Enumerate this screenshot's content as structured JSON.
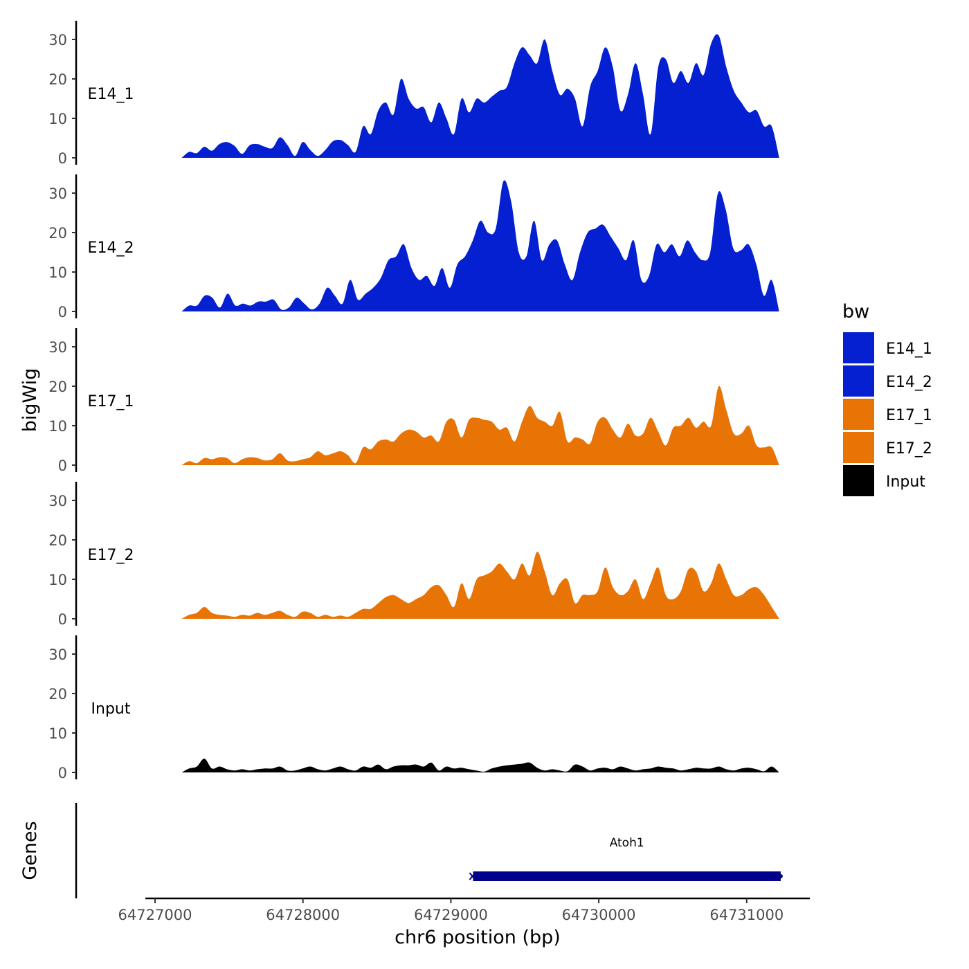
{
  "chart_data": {
    "type": "area",
    "title": "",
    "ylabel": "bigWig",
    "xlabel": "chr6 position (bp)",
    "genes_label": "Genes",
    "legend": {
      "title": "bw",
      "position": "right",
      "entries": [
        {
          "label": "E14_1",
          "color": "#0420D0"
        },
        {
          "label": "E14_2",
          "color": "#0420D0"
        },
        {
          "label": "E17_1",
          "color": "#E87406"
        },
        {
          "label": "E17_2",
          "color": "#E87406"
        },
        {
          "label": "Input",
          "color": "#000000"
        }
      ]
    },
    "ylim": [
      0,
      35
    ],
    "y_ticks": [
      "0",
      "10",
      "20",
      "30"
    ],
    "xlim": [
      64726950,
      64731450
    ],
    "x_ticks": [
      {
        "value": 64727000,
        "label": "64727000"
      },
      {
        "value": 64728000,
        "label": "64728000"
      },
      {
        "value": 64729000,
        "label": "64729000"
      },
      {
        "value": 64730000,
        "label": "64730000"
      },
      {
        "value": 64731000,
        "label": "64731000"
      }
    ],
    "x_range": [
      64727180,
      64731220
    ],
    "series": [
      {
        "name": "E14_1",
        "color": "#0420D0",
        "values": [
          0,
          1.5,
          1.2,
          2.8,
          1.8,
          3.5,
          4,
          3,
          1,
          3.2,
          3.5,
          2.8,
          2.5,
          5.2,
          3.2,
          0.5,
          4,
          2,
          0.5,
          2,
          4.2,
          4.5,
          3.2,
          1.5,
          8,
          6,
          12,
          14,
          11,
          20,
          15,
          12.5,
          12.8,
          9,
          14,
          10,
          6,
          15,
          11.5,
          15,
          14,
          15.5,
          17,
          18,
          24,
          28,
          26,
          24,
          30,
          22,
          16,
          17.5,
          15,
          8,
          18,
          22,
          28,
          23,
          12,
          16,
          24,
          16,
          6,
          23,
          25,
          19,
          22,
          19,
          24,
          21,
          29,
          31,
          23,
          17,
          14,
          11.5,
          12,
          8,
          8,
          0
        ]
      },
      {
        "name": "E14_2",
        "color": "#0420D0",
        "values": [
          0,
          1.5,
          1.5,
          4,
          3.5,
          1,
          4.5,
          1.5,
          2,
          1.5,
          2.5,
          2.5,
          3,
          0.5,
          1,
          3.5,
          2,
          0.5,
          2,
          6,
          4,
          2,
          8,
          3,
          4.5,
          6,
          8.5,
          13,
          14,
          17,
          11,
          8,
          9,
          6.5,
          11,
          6,
          12,
          14,
          18,
          23,
          20,
          21,
          33,
          28,
          15,
          14,
          23,
          13,
          17,
          18,
          12,
          8,
          15,
          20,
          21,
          22,
          19,
          16,
          13,
          18,
          8,
          9,
          17,
          15,
          17,
          14,
          18,
          15,
          13,
          15,
          30,
          26,
          16,
          15.5,
          17,
          12,
          4,
          8,
          0
        ]
      },
      {
        "name": "E17_1",
        "color": "#E87406",
        "values": [
          0,
          1,
          0.5,
          1.8,
          1.5,
          2,
          1.8,
          0.5,
          1.5,
          2,
          1.8,
          1.2,
          1.5,
          3,
          1.2,
          1,
          1.5,
          2,
          3.5,
          2.5,
          3,
          3.5,
          2.5,
          0.5,
          4.5,
          4,
          6,
          6.5,
          6,
          8,
          9,
          8.5,
          7,
          7.5,
          6,
          11,
          11.5,
          7,
          11.5,
          12,
          11.5,
          11,
          9,
          9.5,
          6,
          11,
          15,
          12,
          11,
          10,
          13.5,
          6,
          7,
          6.5,
          5.5,
          11,
          12,
          9,
          7,
          10.5,
          7.5,
          8,
          12,
          8.5,
          5,
          9.5,
          10,
          12,
          9.5,
          11,
          10,
          20,
          14,
          8,
          8,
          10,
          5,
          4.5,
          4.5,
          0
        ]
      },
      {
        "name": "E17_2",
        "color": "#E87406",
        "values": [
          0,
          1,
          1.5,
          3,
          1.5,
          1,
          0.8,
          0.5,
          1,
          0.8,
          1.5,
          1,
          1.5,
          2,
          1,
          0.5,
          1.8,
          1.5,
          0.5,
          1,
          0.5,
          0.8,
          0.5,
          1.5,
          2.5,
          2.5,
          4,
          5.5,
          6,
          5,
          4,
          5,
          6,
          8,
          8.5,
          6,
          3,
          9,
          5,
          10,
          11,
          12,
          14,
          12,
          10,
          14,
          11,
          17,
          12,
          6,
          9,
          10,
          4,
          6,
          6,
          7,
          13,
          8,
          6,
          7,
          10,
          5,
          9,
          13,
          6,
          5,
          7,
          12.5,
          12,
          7,
          9,
          14,
          10,
          6,
          6,
          7.5,
          8,
          6,
          3,
          0
        ]
      },
      {
        "name": "Input",
        "color": "#000000",
        "values": [
          0,
          1,
          1.5,
          3.5,
          1,
          1.5,
          0.8,
          0.5,
          0.8,
          0.5,
          0.8,
          1,
          1,
          1.5,
          0.5,
          0.5,
          1,
          1.5,
          0.8,
          0.5,
          1,
          1.5,
          0.8,
          0.5,
          1.5,
          1.2,
          2,
          0.8,
          1.5,
          1.8,
          1.8,
          2,
          1.5,
          2.5,
          0.5,
          1.5,
          1,
          1.2,
          0.8,
          0.5,
          0.2,
          1,
          1.5,
          1.8,
          2,
          2.2,
          2.5,
          1.2,
          0.5,
          0.8,
          0.5,
          0.3,
          2,
          1.5,
          0.5,
          1,
          1.2,
          0.8,
          1.5,
          1,
          0.5,
          0.8,
          1,
          1.5,
          1.2,
          1,
          0.5,
          0.8,
          1.2,
          1,
          1,
          1.5,
          0.8,
          0.5,
          1,
          1.2,
          0.8,
          0.3,
          1.5,
          0
        ]
      }
    ],
    "gene": {
      "name": "Atoh1",
      "start": 64729150,
      "end": 64731230,
      "color": "#00008B"
    }
  }
}
